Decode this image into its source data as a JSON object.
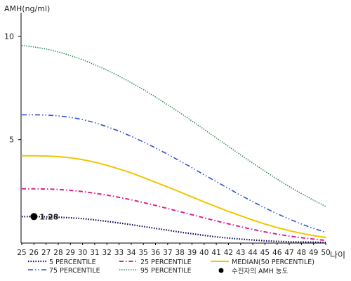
{
  "chart_data": {
    "type": "line",
    "ylabel": "AMH(ng/ml)",
    "xlabel": "나이",
    "x": [
      25,
      26,
      27,
      28,
      29,
      30,
      31,
      32,
      33,
      34,
      35,
      36,
      37,
      38,
      39,
      40,
      41,
      42,
      43,
      44,
      45,
      46,
      47,
      48,
      49,
      50
    ],
    "x_tick_labels": [
      "25",
      "26",
      "27",
      "28",
      "29",
      "30",
      "31",
      "32",
      "33",
      "34",
      "35",
      "36",
      "37",
      "38",
      "39",
      "40",
      "41",
      "42",
      "43",
      "44",
      "45",
      "46",
      "47",
      "48",
      "49",
      "50"
    ],
    "y_ticks": [
      5,
      10
    ],
    "y_tick_labels": [
      "5",
      "10"
    ],
    "ylim": [
      0,
      11
    ],
    "grid": false,
    "legend_position": "bottom",
    "series": [
      {
        "name": "5 PERCENTILE",
        "color": "#0a0a5a",
        "dash": "dotted",
        "values": [
          1.28,
          1.28,
          1.27,
          1.25,
          1.22,
          1.18,
          1.12,
          1.05,
          0.97,
          0.89,
          0.8,
          0.71,
          0.62,
          0.53,
          0.45,
          0.37,
          0.3,
          0.24,
          0.19,
          0.15,
          0.11,
          0.08,
          0.06,
          0.05,
          0.04,
          0.03
        ]
      },
      {
        "name": "25 PERCENTILE",
        "color": "#e0208c",
        "dash": "dashdot",
        "values": [
          2.62,
          2.62,
          2.61,
          2.59,
          2.55,
          2.49,
          2.41,
          2.32,
          2.21,
          2.09,
          1.96,
          1.82,
          1.67,
          1.52,
          1.37,
          1.22,
          1.07,
          0.93,
          0.79,
          0.66,
          0.54,
          0.43,
          0.34,
          0.26,
          0.19,
          0.13
        ]
      },
      {
        "name": "MEDIAN(50 PERCENTILE)",
        "color": "#f2c500",
        "dash": "solid",
        "values": [
          4.22,
          4.22,
          4.21,
          4.18,
          4.12,
          4.03,
          3.91,
          3.76,
          3.58,
          3.39,
          3.17,
          2.94,
          2.71,
          2.47,
          2.23,
          1.99,
          1.76,
          1.53,
          1.32,
          1.11,
          0.92,
          0.75,
          0.6,
          0.47,
          0.36,
          0.27
        ]
      },
      {
        "name": "75 PERCENTILE",
        "color": "#3050d0",
        "dash": "dashdotdot",
        "values": [
          6.2,
          6.2,
          6.19,
          6.15,
          6.08,
          5.97,
          5.82,
          5.63,
          5.41,
          5.16,
          4.89,
          4.6,
          4.29,
          3.97,
          3.64,
          3.3,
          2.97,
          2.64,
          2.31,
          2.0,
          1.7,
          1.42,
          1.16,
          0.92,
          0.71,
          0.52
        ]
      },
      {
        "name": "95 PERCENTILE",
        "color": "#2e8b57",
        "dash": "densedot",
        "values": [
          9.55,
          9.48,
          9.38,
          9.24,
          9.06,
          8.86,
          8.62,
          8.36,
          8.07,
          7.75,
          7.42,
          7.06,
          6.68,
          6.3,
          5.9,
          5.49,
          5.08,
          4.67,
          4.26,
          3.86,
          3.47,
          3.09,
          2.73,
          2.39,
          2.07,
          1.77
        ]
      }
    ],
    "marker": {
      "name": "수진자의 AMH 농도",
      "x": 26,
      "y": 1.28,
      "label": "1.28",
      "color": "#000000"
    }
  }
}
